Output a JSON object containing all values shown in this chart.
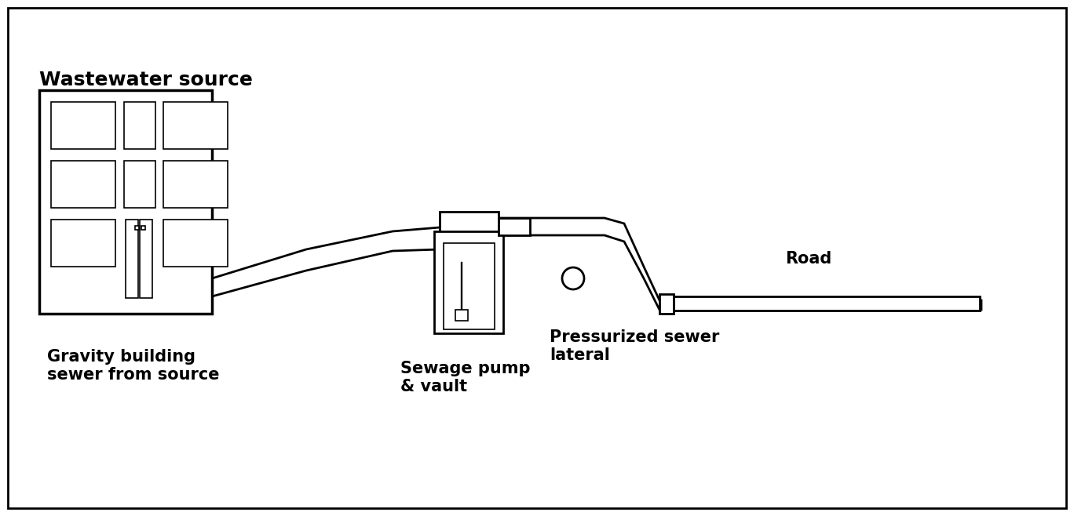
{
  "bg_color": "#ffffff",
  "line_color": "#000000",
  "line_width": 2.0,
  "thin_line": 1.2,
  "labels": {
    "wastewater_source": "Wastewater source",
    "gravity_sewer": "Gravity building\nsewer from source",
    "sewage_pump": "Sewage pump\n& vault",
    "pressurized_sewer": "Pressurized sewer\nlateral",
    "road": "Road"
  },
  "figsize": [
    13.68,
    6.58
  ],
  "dpi": 100
}
